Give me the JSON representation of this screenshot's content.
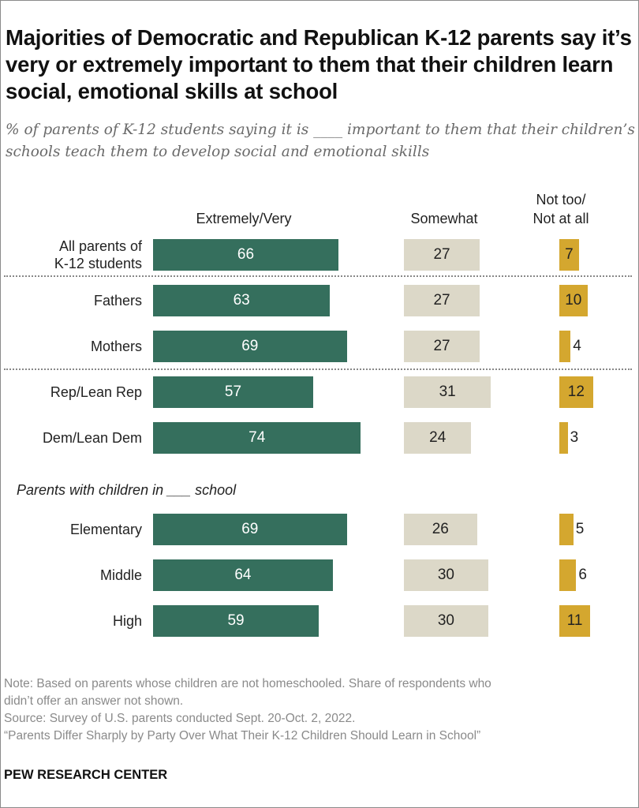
{
  "title": "Majorities of Democratic and Republican K-12 parents say it’s very or extremely important to them that their children learn social, emotional skills at school",
  "subtitle": "% of parents of K-12 students saying it is ____ important to them that their children’s schools teach them to develop social and emotional skills",
  "chart_data": {
    "type": "bar",
    "orientation": "horizontal",
    "columns": [
      "Extremely/Very",
      "Somewhat",
      "Not too/\nNot at all"
    ],
    "colors": {
      "Extremely/Very": "#356f5d",
      "Somewhat": "#dcd8c8",
      "Not too/Not at all": "#d4a72f"
    },
    "section_label": "Parents with children in ___ school",
    "rows": [
      {
        "label": "All parents of\nK-12 students",
        "values": [
          66,
          27,
          7
        ]
      },
      {
        "label": "Fathers",
        "values": [
          63,
          27,
          10
        ]
      },
      {
        "label": "Mothers",
        "values": [
          69,
          27,
          4
        ]
      },
      {
        "label": "Rep/Lean Rep",
        "values": [
          57,
          31,
          12
        ]
      },
      {
        "label": "Dem/Lean Dem",
        "values": [
          74,
          24,
          3
        ]
      },
      {
        "label": "Elementary",
        "values": [
          69,
          26,
          5
        ]
      },
      {
        "label": "Middle",
        "values": [
          64,
          30,
          6
        ]
      },
      {
        "label": "High",
        "values": [
          59,
          30,
          11
        ]
      }
    ]
  },
  "notes": [
    "Note: Based on parents whose children are not homeschooled. Share of respondents who",
    "didn’t offer an answer not shown.",
    "Source: Survey of U.S. parents conducted Sept. 20-Oct. 2, 2022.",
    "“Parents Differ Sharply by Party Over What Their K-12 Children Should Learn in School”"
  ],
  "brand": "PEW RESEARCH CENTER"
}
